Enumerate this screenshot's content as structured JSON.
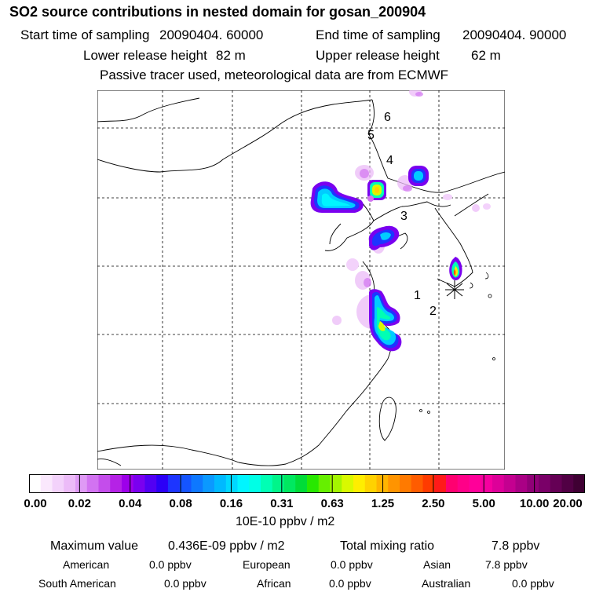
{
  "title": "SO2 source contributions in nested domain for gosan_200904",
  "header": {
    "start_label": "Start time of sampling",
    "start_value": "20090404. 60000",
    "end_label": "End time of sampling",
    "end_value": "20090404. 90000",
    "lower_label": "Lower release height",
    "lower_value": "82 m",
    "upper_label": "Upper release height",
    "upper_value": "62 m",
    "note": "Passive tracer used, meteorological data are from ECMWF"
  },
  "map": {
    "markers": [
      {
        "label": "1"
      },
      {
        "label": "2"
      },
      {
        "label": "3"
      },
      {
        "label": "4"
      },
      {
        "label": "5"
      },
      {
        "label": "6"
      }
    ],
    "receptor": "star-marker"
  },
  "colorbar": {
    "ticks": [
      "0.00",
      "0.02",
      "0.04",
      "0.08",
      "0.16",
      "0.31",
      "0.63",
      "1.25",
      "2.50",
      "5.00",
      "10.00",
      "20.00"
    ],
    "unit": "10E-10 ppbv / m2",
    "colors": [
      "#ffffff",
      "#fae8fd",
      "#f3d2fb",
      "#ecbbf8",
      "#df9af5",
      "#d273f1",
      "#c44deb",
      "#b522e6",
      "#9d00ea",
      "#7a00ef",
      "#5200f3",
      "#2b00f7",
      "#1d35ff",
      "#1555ff",
      "#0e78ff",
      "#0b99ff",
      "#00b9ff",
      "#00d8ff",
      "#00f5ff",
      "#00ffe6",
      "#00ffb4",
      "#00f58a",
      "#00e860",
      "#00dc38",
      "#28e800",
      "#66ef00",
      "#a4f500",
      "#d9f900",
      "#ffee00",
      "#ffd200",
      "#ffb400",
      "#ff9400",
      "#ff7a00",
      "#ff5c00",
      "#ff3b00",
      "#ff1a1a",
      "#ff0070",
      "#ff0088",
      "#ff0099",
      "#f5009f",
      "#dd0099",
      "#c40090",
      "#aa0085",
      "#900077",
      "#7a0068",
      "#650055",
      "#510044",
      "#3f0033"
    ]
  },
  "footer": {
    "max_label": "Maximum value",
    "max_value": "0.436E-09 ppbv / m2",
    "total_label": "Total mixing ratio",
    "total_value": "7.8 ppbv",
    "regions": [
      {
        "name": "American",
        "value": "0.0 ppbv"
      },
      {
        "name": "European",
        "value": "0.0 ppbv"
      },
      {
        "name": "Asian",
        "value": "7.8 ppbv"
      },
      {
        "name": "South American",
        "value": "0.0 ppbv"
      },
      {
        "name": "African",
        "value": "0.0 ppbv"
      },
      {
        "name": "Australian",
        "value": "0.0 ppbv"
      }
    ]
  }
}
